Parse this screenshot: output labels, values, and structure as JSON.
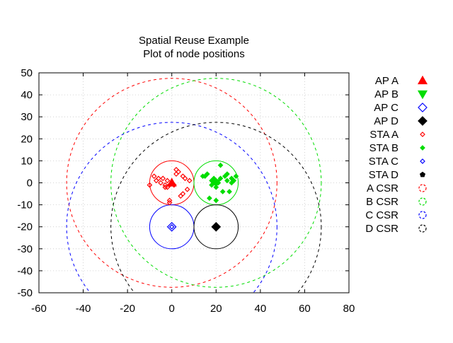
{
  "chart_data": {
    "type": "scatter",
    "title": "Spatial Reuse Example",
    "subtitle": "Plot of node positions",
    "xlabel": "",
    "ylabel": "",
    "xlim": [
      -60,
      80
    ],
    "ylim": [
      -50,
      50
    ],
    "x_ticks": [
      -60,
      -40,
      -20,
      0,
      20,
      40,
      60,
      80
    ],
    "y_ticks": [
      -50,
      -40,
      -30,
      -20,
      -10,
      0,
      10,
      20,
      30,
      40,
      50
    ],
    "grid": true,
    "legend_position": "right",
    "series": [
      {
        "name": "AP A",
        "kind": "points",
        "marker": "triangle-up",
        "filled": true,
        "color": "#ff0000",
        "points": [
          [
            0,
            0
          ]
        ]
      },
      {
        "name": "AP B",
        "kind": "points",
        "marker": "triangle-down",
        "filled": true,
        "color": "#00dd00",
        "points": [
          [
            20,
            0
          ]
        ]
      },
      {
        "name": "AP C",
        "kind": "points",
        "marker": "diamond",
        "filled": false,
        "color": "#0000ff",
        "points": [
          [
            0,
            -20
          ]
        ]
      },
      {
        "name": "AP D",
        "kind": "points",
        "marker": "diamond",
        "filled": true,
        "color": "#000000",
        "points": [
          [
            20,
            -20
          ]
        ]
      },
      {
        "name": "STA A",
        "kind": "points",
        "marker": "diamond-small",
        "filled": false,
        "color": "#ff0000",
        "points": [
          [
            -10,
            -1
          ],
          [
            -8,
            3
          ],
          [
            -7,
            1
          ],
          [
            -6,
            2
          ],
          [
            -5,
            0
          ],
          [
            -4,
            2
          ],
          [
            -3,
            -2
          ],
          [
            -3,
            -1
          ],
          [
            -2,
            1
          ],
          [
            -1,
            -9
          ],
          [
            -1,
            -8
          ],
          [
            -1,
            -1
          ],
          [
            1,
            -1
          ],
          [
            2,
            6
          ],
          [
            2,
            4
          ],
          [
            3,
            5
          ],
          [
            4,
            -6
          ],
          [
            5,
            -5
          ],
          [
            5,
            3
          ],
          [
            6,
            2
          ],
          [
            7,
            -3
          ],
          [
            8,
            1
          ],
          [
            -2,
            -2
          ]
        ]
      },
      {
        "name": "STA B",
        "kind": "points",
        "marker": "diamond-small",
        "filled": true,
        "color": "#00dd00",
        "points": [
          [
            14,
            3
          ],
          [
            15,
            3
          ],
          [
            16,
            4
          ],
          [
            17,
            -7
          ],
          [
            18,
            -1
          ],
          [
            18,
            1
          ],
          [
            19,
            0
          ],
          [
            19,
            2
          ],
          [
            20,
            -2
          ],
          [
            20,
            1
          ],
          [
            21,
            0
          ],
          [
            22,
            8
          ],
          [
            23,
            -4
          ],
          [
            24,
            3
          ],
          [
            25,
            1
          ],
          [
            25,
            4
          ],
          [
            26,
            -4
          ],
          [
            27,
            0
          ],
          [
            27,
            2
          ],
          [
            28,
            1
          ],
          [
            29,
            3
          ],
          [
            20,
            -8
          ],
          [
            22,
            2
          ]
        ]
      },
      {
        "name": "STA C",
        "kind": "points",
        "marker": "diamond-small",
        "filled": false,
        "color": "#0000ff",
        "points": [
          [
            0,
            -20
          ]
        ]
      },
      {
        "name": "STA D",
        "kind": "points",
        "marker": "pentagon",
        "filled": true,
        "color": "#000000",
        "points": []
      },
      {
        "name": "",
        "kind": "circle",
        "center": [
          0,
          0
        ],
        "radius": 10,
        "dashed": false,
        "color": "#ff0000"
      },
      {
        "name": "",
        "kind": "circle",
        "center": [
          20,
          0
        ],
        "radius": 10,
        "dashed": false,
        "color": "#00dd00"
      },
      {
        "name": "",
        "kind": "circle",
        "center": [
          0,
          -20
        ],
        "radius": 10,
        "dashed": false,
        "color": "#0000ff"
      },
      {
        "name": "",
        "kind": "circle",
        "center": [
          20,
          -20
        ],
        "radius": 10,
        "dashed": false,
        "color": "#000000"
      },
      {
        "name": "A CSR",
        "kind": "circle",
        "center": [
          0,
          0
        ],
        "radius": 47.5,
        "dashed": true,
        "color": "#ff0000"
      },
      {
        "name": "B CSR",
        "kind": "circle",
        "center": [
          20,
          0
        ],
        "radius": 47.5,
        "dashed": true,
        "color": "#00dd00"
      },
      {
        "name": "C CSR",
        "kind": "circle",
        "center": [
          0,
          -20
        ],
        "radius": 47.5,
        "dashed": true,
        "color": "#0000ff"
      },
      {
        "name": "D CSR",
        "kind": "circle",
        "center": [
          20,
          -20
        ],
        "radius": 47.5,
        "dashed": true,
        "color": "#000000"
      }
    ]
  }
}
